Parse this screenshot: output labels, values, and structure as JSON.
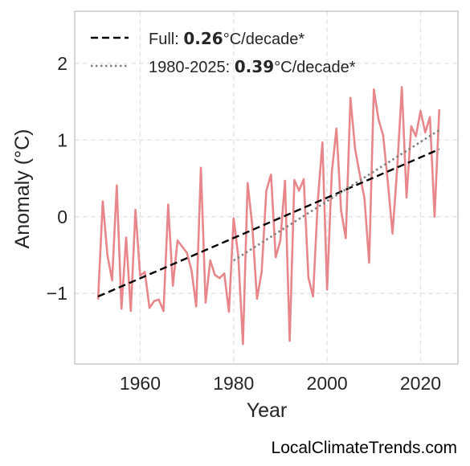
{
  "chart_data": {
    "type": "line",
    "xlabel": "Year",
    "ylabel": "Anomaly (°C)",
    "xlim": [
      1946,
      2028
    ],
    "ylim": [
      -1.92,
      2.68
    ],
    "xticks": [
      1960,
      1980,
      2000,
      2020
    ],
    "yticks": [
      -1,
      0,
      1,
      2
    ],
    "ytick_labels": [
      "−1",
      "0",
      "1",
      "2"
    ],
    "grid": true,
    "legend_position": "top-left",
    "colors": {
      "series": "#e8878b",
      "full_trend": "#000000",
      "recent_trend": "#808080"
    },
    "series": [
      {
        "x": [
          1951,
          1952,
          1953,
          1954,
          1955,
          1956,
          1957,
          1958,
          1959,
          1960,
          1961,
          1962,
          1963,
          1964,
          1965,
          1966,
          1967,
          1968,
          1969,
          1970,
          1971,
          1972,
          1973,
          1974,
          1975,
          1976,
          1977,
          1978,
          1979,
          1980,
          1981,
          1982,
          1983,
          1984,
          1985,
          1986,
          1987,
          1988,
          1989,
          1990,
          1991,
          1992,
          1993,
          1994,
          1995,
          1996,
          1997,
          1998,
          1999,
          2000,
          2001,
          2002,
          2003,
          2004,
          2005,
          2006,
          2007,
          2008,
          2009,
          2010,
          2011,
          2012,
          2013,
          2014,
          2015,
          2016,
          2017,
          2018,
          2019,
          2020,
          2021,
          2022,
          2023,
          2024
        ],
        "values": [
          -1.08,
          0.2,
          -0.5,
          -0.83,
          0.41,
          -1.2,
          -0.27,
          -1.23,
          0.09,
          -0.77,
          -0.72,
          -1.19,
          -1.1,
          -1.08,
          -1.23,
          0.16,
          -0.9,
          -0.31,
          -0.39,
          -0.47,
          -0.7,
          -1.17,
          0.64,
          -1.12,
          -0.57,
          -0.76,
          -0.8,
          -0.74,
          -1.24,
          -0.02,
          -0.52,
          -1.66,
          0.44,
          -0.12,
          -1.07,
          -0.72,
          0.34,
          0.55,
          -0.53,
          -0.31,
          0.47,
          -1.62,
          0.48,
          0.34,
          0.49,
          -0.79,
          -1.04,
          0.19,
          0.97,
          -0.95,
          0.57,
          1.15,
          0.08,
          -0.28,
          1.55,
          0.88,
          0.55,
          0.24,
          -0.6,
          1.66,
          1.27,
          1.06,
          0.45,
          -0.22,
          0.63,
          1.69,
          0.25,
          1.18,
          1.05,
          1.38,
          1.1,
          1.3,
          0.0,
          1.4
        ]
      }
    ],
    "trend_full": {
      "x": [
        1951,
        2024
      ],
      "y": [
        -1.04,
        0.88
      ]
    },
    "trend_recent": {
      "x": [
        1980,
        2024
      ],
      "y": [
        -0.57,
        1.13
      ]
    },
    "legend": [
      {
        "prefix": "Full: ",
        "value": "0.26",
        "suffix": "°C/decade*"
      },
      {
        "prefix": "1980-2025: ",
        "value": "0.39",
        "suffix": "°C/decade*"
      }
    ]
  },
  "footer": "LocalClimateTrends.com"
}
